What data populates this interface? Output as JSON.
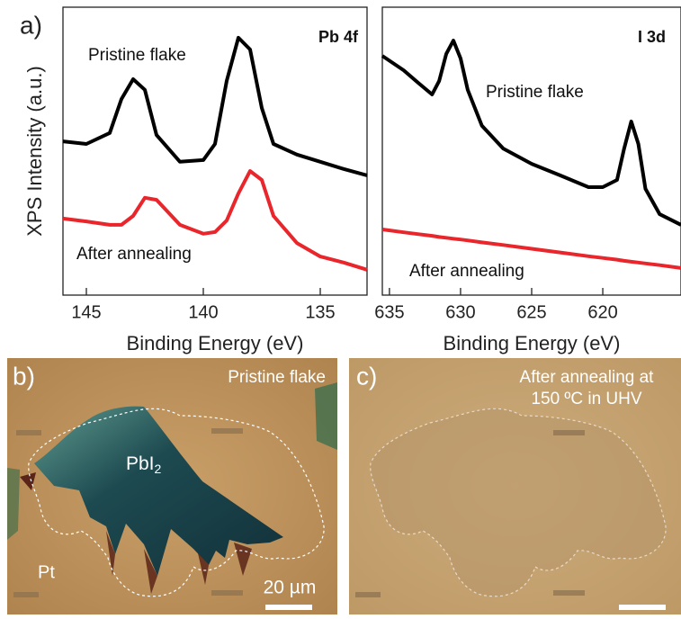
{
  "chart_data": [
    {
      "type": "line",
      "panel_label": "a)",
      "title": "Pb 4f",
      "x_label": "Binding Energy (eV)",
      "y_label": "XPS Intensity (a.u.)",
      "x": [
        146,
        145,
        144,
        143.5,
        143,
        142.5,
        142,
        141,
        140,
        139.5,
        139,
        138.5,
        138,
        137.5,
        137,
        136,
        135,
        134,
        133
      ],
      "series": [
        {
          "name": "Pristine flake",
          "color": "#000000",
          "values": [
            5.34,
            5.25,
            5.63,
            6.81,
            7.5,
            7.13,
            5.56,
            4.63,
            4.69,
            5.25,
            7.44,
            8.94,
            8.53,
            6.5,
            5.25,
            4.88,
            4.63,
            4.38,
            4.16
          ]
        },
        {
          "name": "After annealing",
          "color": "#e8262b",
          "values": [
            2.66,
            2.56,
            2.44,
            2.44,
            2.75,
            3.38,
            3.31,
            2.44,
            2.13,
            2.19,
            2.59,
            3.53,
            4.31,
            4.0,
            2.75,
            1.81,
            1.34,
            1.13,
            0.88
          ]
        }
      ],
      "xlim": [
        146,
        133
      ],
      "xticks": [
        145,
        140,
        135
      ],
      "ylim": [
        0,
        10
      ]
    },
    {
      "type": "line",
      "title": "I 3d",
      "x_label": "Binding Energy (eV)",
      "x": [
        635.5,
        634,
        633,
        632,
        631.5,
        631,
        630.5,
        630,
        629.5,
        628.5,
        627,
        625,
        623,
        621,
        620,
        619,
        618.5,
        618,
        617.5,
        617,
        616,
        614.5
      ],
      "series": [
        {
          "name": "Pristine flake",
          "color": "#000000",
          "values": [
            8.31,
            7.81,
            7.38,
            6.97,
            7.44,
            8.38,
            8.84,
            8.22,
            7.13,
            5.88,
            5.09,
            4.56,
            4.16,
            3.75,
            3.75,
            4.0,
            5.09,
            6.03,
            5.25,
            3.69,
            2.81,
            2.44
          ]
        },
        {
          "name": "After annealing",
          "color": "#e8262b",
          "values": [
            2.28,
            2.18,
            2.12,
            2.06,
            2.02,
            1.99,
            1.96,
            1.93,
            1.9,
            1.83,
            1.74,
            1.61,
            1.48,
            1.35,
            1.29,
            1.23,
            1.19,
            1.16,
            1.13,
            1.1,
            1.04,
            0.94
          ]
        }
      ],
      "xlim": [
        635.5,
        614.5
      ],
      "xticks": [
        635,
        630,
        625,
        620
      ],
      "ylim": [
        0,
        10
      ]
    }
  ],
  "images": [
    {
      "label": "b)",
      "caption": "Pristine flake",
      "material": "PbI",
      "subscript": "2",
      "substrate": "Pt",
      "scale_bar": "20 µm"
    },
    {
      "label": "c)",
      "caption_lines": [
        "After annealing at",
        "150 ºC in UHV"
      ]
    }
  ]
}
